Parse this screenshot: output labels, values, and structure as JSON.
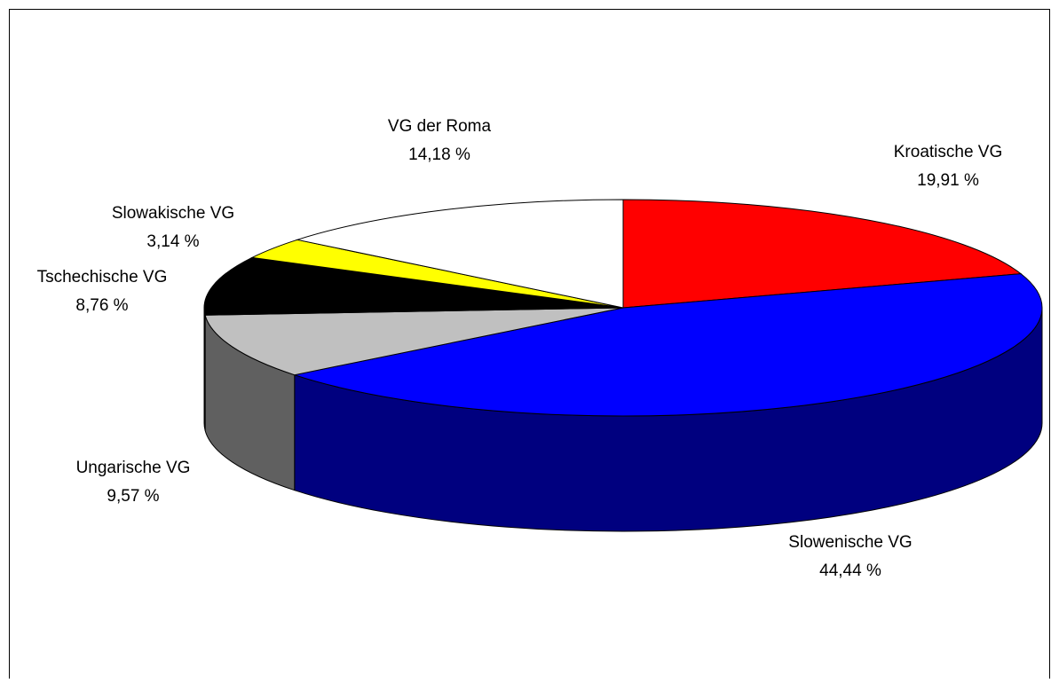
{
  "chart_data": {
    "type": "pie",
    "categories": [
      "Kroatische VG",
      "Slowenische VG",
      "Ungarische VG",
      "Tschechische VG",
      "Slowakische VG",
      "VG der Roma"
    ],
    "values": [
      19.91,
      44.44,
      9.57,
      8.76,
      3.14,
      14.18
    ],
    "value_labels": [
      "19,91 %",
      "44,44 %",
      "9,57 %",
      "8,76 %",
      "3,14 %",
      "14,18 %"
    ],
    "colors": [
      "#ff0000",
      "#0000ff",
      "#c0c0c0",
      "#000000",
      "#ffff00",
      "#ffffff"
    ]
  }
}
